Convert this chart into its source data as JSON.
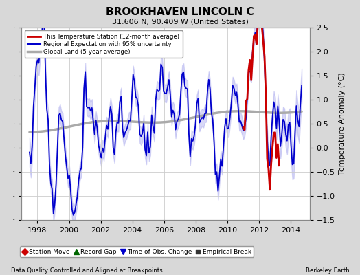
{
  "title": "BROOKHAVEN LINCOLN C",
  "subtitle": "31.606 N, 90.409 W (United States)",
  "ylabel": "Temperature Anomaly (°C)",
  "xlabel_footer_left": "Data Quality Controlled and Aligned at Breakpoints",
  "xlabel_footer_right": "Berkeley Earth",
  "ylim": [
    -1.5,
    2.5
  ],
  "xlim": [
    1997.0,
    2015.2
  ],
  "yticks": [
    -1.5,
    -1.0,
    -0.5,
    0.0,
    0.5,
    1.0,
    1.5,
    2.0,
    2.5
  ],
  "xticks": [
    1998,
    2000,
    2002,
    2004,
    2006,
    2008,
    2010,
    2012,
    2014
  ],
  "bg_color": "#d8d8d8",
  "plot_bg_color": "#ffffff",
  "grid_color": "#cccccc",
  "station_color": "#cc0000",
  "regional_color": "#0000cc",
  "regional_fill_color": "#aaaaee",
  "global_color": "#aaaaaa",
  "legend_items": [
    {
      "label": "This Temperature Station (12-month average)",
      "color": "#cc0000",
      "lw": 2
    },
    {
      "label": "Regional Expectation with 95% uncertainty",
      "color": "#0000cc",
      "lw": 1.5
    },
    {
      "label": "Global Land (5-year average)",
      "color": "#aaaaaa",
      "lw": 2.5
    }
  ],
  "legend2_items": [
    {
      "label": "Station Move",
      "marker": "D",
      "color": "#cc0000"
    },
    {
      "label": "Record Gap",
      "marker": "^",
      "color": "#006600"
    },
    {
      "label": "Time of Obs. Change",
      "marker": "v",
      "color": "#0000cc"
    },
    {
      "label": "Empirical Break",
      "marker": "s",
      "color": "#333333"
    }
  ]
}
